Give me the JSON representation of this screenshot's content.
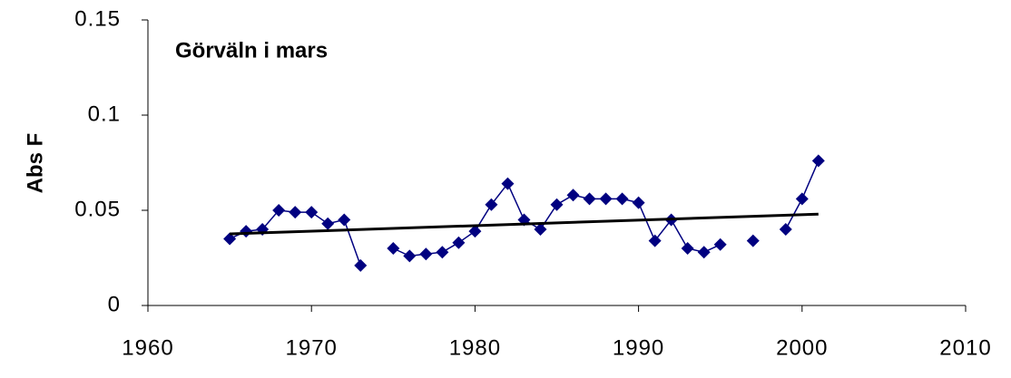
{
  "chart_data": {
    "type": "line",
    "title": "Görväln i mars",
    "y_label": "Abs F",
    "x": [
      1965,
      1966,
      1967,
      1968,
      1969,
      1970,
      1971,
      1972,
      1973,
      1974,
      1975,
      1976,
      1977,
      1978,
      1979,
      1980,
      1981,
      1982,
      1983,
      1984,
      1985,
      1986,
      1987,
      1988,
      1989,
      1990,
      1991,
      1992,
      1993,
      1994,
      1995,
      1996,
      1997,
      1998,
      1999,
      2000,
      2001
    ],
    "series": [
      {
        "color": "#000080",
        "values": [
          0.035,
          0.039,
          0.04,
          0.05,
          0.049,
          0.049,
          0.043,
          0.045,
          0.021,
          null,
          0.03,
          0.026,
          0.027,
          0.028,
          0.033,
          0.039,
          0.053,
          0.064,
          0.045,
          0.04,
          0.053,
          0.058,
          0.056,
          0.056,
          0.056,
          0.054,
          0.034,
          0.045,
          0.03,
          0.028,
          0.032,
          null,
          0.034,
          null,
          0.04,
          0.056,
          0.076
        ]
      }
    ],
    "trend": {
      "color": "#000000",
      "x": [
        1965,
        2001
      ],
      "values": [
        0.0376,
        0.048
      ]
    },
    "xlim": [
      1960,
      2010
    ],
    "xticks": [
      1960,
      1970,
      1980,
      1990,
      2000,
      2010
    ],
    "ylim": [
      0,
      0.15
    ],
    "yticks": [
      0,
      0.05,
      0.1,
      0.15
    ]
  }
}
